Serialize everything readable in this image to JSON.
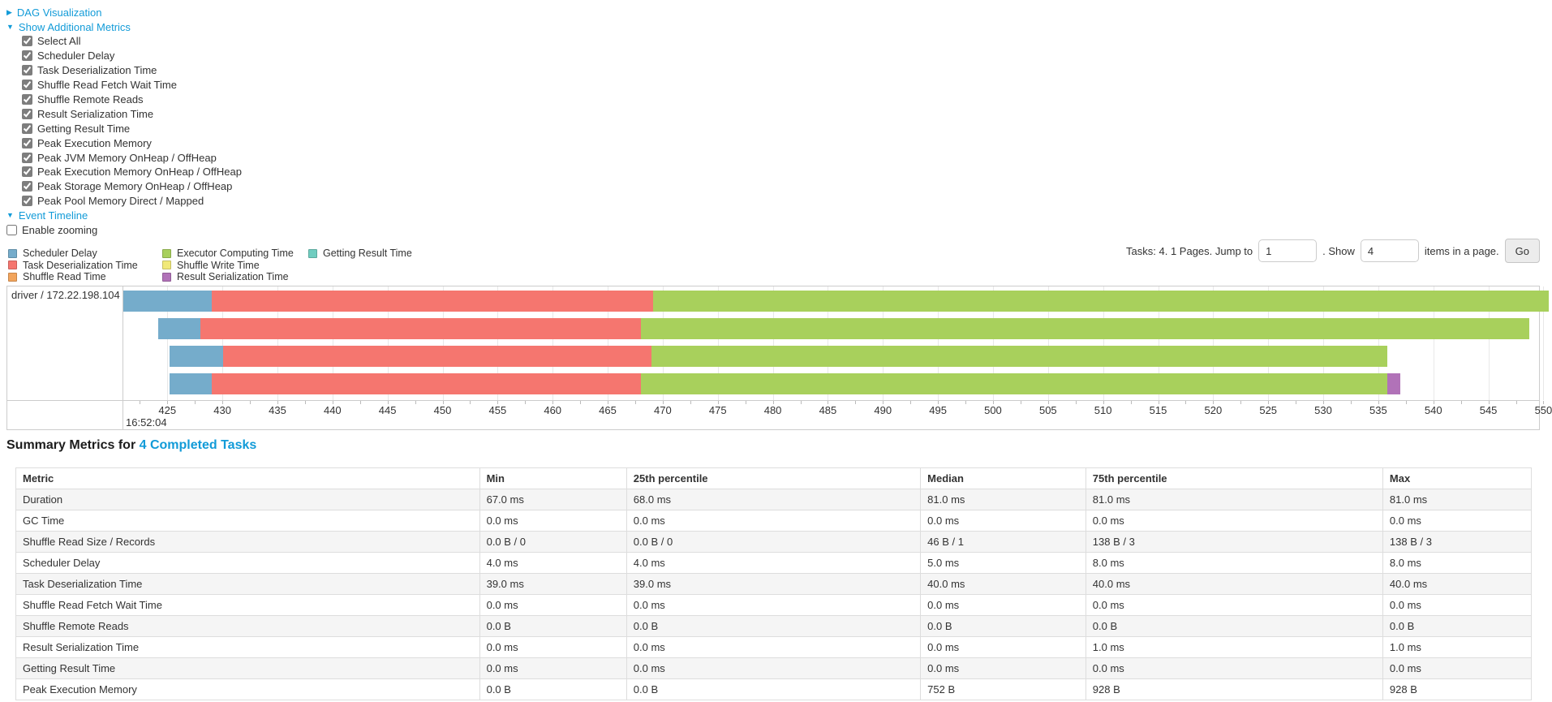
{
  "colors": {
    "link": "#129bd8",
    "scheduler_delay": "#75accb",
    "task_deserialization": "#f5766f",
    "shuffle_read": "#f2a45c",
    "executor_computing": "#a8d05c",
    "shuffle_write": "#f1e979",
    "result_serialization": "#b172b8",
    "getting_result": "#70cdc0"
  },
  "controls": {
    "dag": {
      "label": "DAG Visualization",
      "arrow": "▶"
    },
    "metrics": {
      "label": "Show Additional Metrics",
      "arrow": "▼",
      "items": [
        "Select All",
        "Scheduler Delay",
        "Task Deserialization Time",
        "Shuffle Read Fetch Wait Time",
        "Shuffle Remote Reads",
        "Result Serialization Time",
        "Getting Result Time",
        "Peak Execution Memory",
        "Peak JVM Memory OnHeap / OffHeap",
        "Peak Execution Memory OnHeap / OffHeap",
        "Peak Storage Memory OnHeap / OffHeap",
        "Peak Pool Memory Direct / Mapped"
      ]
    },
    "event_timeline": {
      "label": "Event Timeline",
      "arrow": "▼"
    },
    "enable_zooming": {
      "label": "Enable zooming"
    }
  },
  "legend": {
    "columns": [
      {
        "items": [
          {
            "label": "Scheduler Delay",
            "color": "scheduler_delay"
          },
          {
            "label": "Task Deserialization Time",
            "color": "task_deserialization"
          },
          {
            "label": "Shuffle Read Time",
            "color": "shuffle_read"
          }
        ]
      },
      {
        "items": [
          {
            "label": "Executor Computing Time",
            "color": "executor_computing"
          },
          {
            "label": "Shuffle Write Time",
            "color": "shuffle_write"
          },
          {
            "label": "Result Serialization Time",
            "color": "result_serialization"
          }
        ]
      },
      {
        "items": [
          {
            "label": "Getting Result Time",
            "color": "getting_result"
          }
        ]
      }
    ]
  },
  "pagination": {
    "prefix": "Tasks: 4. 1 Pages. Jump to",
    "jump_value": "1",
    "mid": ". Show",
    "show_value": "4",
    "suffix": "items in a page.",
    "go_label": "Go"
  },
  "timeline": {
    "group_label": "driver / 172.22.198.104",
    "axis": {
      "min": 421.0,
      "max": 549.6,
      "ticks": [
        425,
        430,
        435,
        440,
        445,
        450,
        455,
        460,
        465,
        470,
        475,
        480,
        485,
        490,
        495,
        500,
        505,
        510,
        515,
        520,
        525,
        530,
        535,
        540,
        545,
        550
      ],
      "minor_step": 2.5,
      "time_label": "16:52:04"
    },
    "rows": [
      {
        "segments": [
          {
            "color": "scheduler_delay",
            "start": 421.0,
            "end": 429.0
          },
          {
            "color": "task_deserialization",
            "start": 429.0,
            "end": 469.1
          },
          {
            "color": "executor_computing",
            "start": 469.1,
            "end": 550.5
          }
        ]
      },
      {
        "segments": [
          {
            "color": "scheduler_delay",
            "start": 424.2,
            "end": 428.0
          },
          {
            "color": "task_deserialization",
            "start": 428.0,
            "end": 468.0
          },
          {
            "color": "executor_computing",
            "start": 468.0,
            "end": 548.7
          }
        ]
      },
      {
        "segments": [
          {
            "color": "scheduler_delay",
            "start": 425.2,
            "end": 430.1
          },
          {
            "color": "task_deserialization",
            "start": 430.1,
            "end": 469.0
          },
          {
            "color": "executor_computing",
            "start": 469.0,
            "end": 535.8
          }
        ]
      },
      {
        "segments": [
          {
            "color": "scheduler_delay",
            "start": 425.2,
            "end": 429.0
          },
          {
            "color": "task_deserialization",
            "start": 429.0,
            "end": 468.0
          },
          {
            "color": "executor_computing",
            "start": 468.0,
            "end": 535.8
          },
          {
            "color": "result_serialization",
            "start": 535.8,
            "end": 537.0
          }
        ]
      }
    ]
  },
  "summary": {
    "title_prefix": "Summary Metrics for",
    "title_link": "4 Completed Tasks",
    "columns": [
      "Metric",
      "Min",
      "25th percentile",
      "Median",
      "75th percentile",
      "Max"
    ],
    "column_widths": [
      "30.6%",
      "9.7%",
      "19.4%",
      "10.9%",
      "19.6%",
      "9.9%"
    ],
    "rows": [
      {
        "metric": "Duration",
        "values": [
          "67.0 ms",
          "68.0 ms",
          "81.0 ms",
          "81.0 ms",
          "81.0 ms"
        ]
      },
      {
        "metric": "GC Time",
        "values": [
          "0.0 ms",
          "0.0 ms",
          "0.0 ms",
          "0.0 ms",
          "0.0 ms"
        ]
      },
      {
        "metric": "Shuffle Read Size / Records",
        "values": [
          "0.0 B / 0",
          "0.0 B / 0",
          "46 B / 1",
          "138 B / 3",
          "138 B / 3"
        ]
      },
      {
        "metric": "Scheduler Delay",
        "values": [
          "4.0 ms",
          "4.0 ms",
          "5.0 ms",
          "8.0 ms",
          "8.0 ms"
        ]
      },
      {
        "metric": "Task Deserialization Time",
        "values": [
          "39.0 ms",
          "39.0 ms",
          "40.0 ms",
          "40.0 ms",
          "40.0 ms"
        ]
      },
      {
        "metric": "Shuffle Read Fetch Wait Time",
        "values": [
          "0.0 ms",
          "0.0 ms",
          "0.0 ms",
          "0.0 ms",
          "0.0 ms"
        ]
      },
      {
        "metric": "Shuffle Remote Reads",
        "values": [
          "0.0 B",
          "0.0 B",
          "0.0 B",
          "0.0 B",
          "0.0 B"
        ]
      },
      {
        "metric": "Result Serialization Time",
        "values": [
          "0.0 ms",
          "0.0 ms",
          "0.0 ms",
          "1.0 ms",
          "1.0 ms"
        ]
      },
      {
        "metric": "Getting Result Time",
        "values": [
          "0.0 ms",
          "0.0 ms",
          "0.0 ms",
          "0.0 ms",
          "0.0 ms"
        ]
      },
      {
        "metric": "Peak Execution Memory",
        "values": [
          "0.0 B",
          "0.0 B",
          "752 B",
          "928 B",
          "928 B"
        ]
      }
    ]
  }
}
